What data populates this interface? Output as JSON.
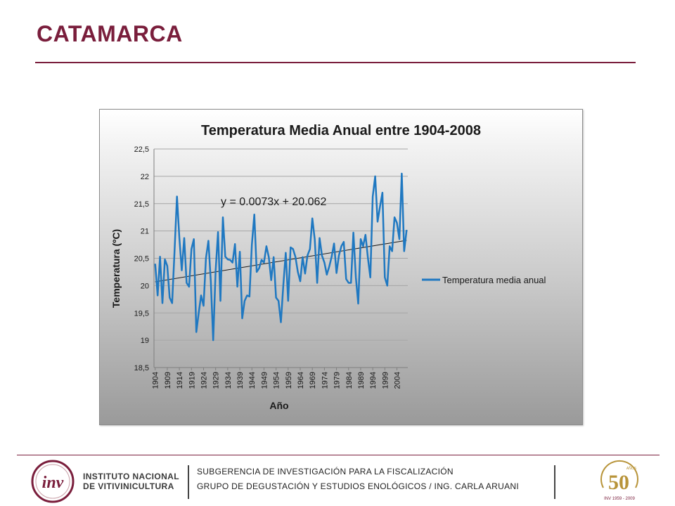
{
  "slide": {
    "title": "CATAMARCA"
  },
  "chart_data": {
    "type": "line",
    "title": "Temperatura Media Anual entre 1904-2008",
    "xlabel": "Año",
    "ylabel": "Temperatura (ºC)",
    "ylim": [
      18.5,
      22.5
    ],
    "yticks": [
      "18,5",
      "19",
      "19,5",
      "20",
      "20,5",
      "21",
      "21,5",
      "22",
      "22,5"
    ],
    "xtick_labels": [
      "1904",
      "1909",
      "1914",
      "1919",
      "1924",
      "1929",
      "1934",
      "1939",
      "1944",
      "1949",
      "1954",
      "1959",
      "1964",
      "1969",
      "1974",
      "1979",
      "1984",
      "1989",
      "1994",
      "1999",
      "2004"
    ],
    "x_start": 1904,
    "x_end": 2008,
    "legend": "Temperatura media anual",
    "legend_position": "right",
    "trendline_label": "y = 0.0073x + 20.062",
    "trendline": {
      "slope": 0.0073,
      "intercept": 20.062
    },
    "series": [
      {
        "name": "Temperatura media anual",
        "color": "#1f78c1",
        "values": [
          20.4,
          19.82,
          20.53,
          19.68,
          20.48,
          20.36,
          19.78,
          19.68,
          20.62,
          21.63,
          20.87,
          20.28,
          20.87,
          20.05,
          19.98,
          20.67,
          20.85,
          19.15,
          19.5,
          19.82,
          19.63,
          20.5,
          20.82,
          20.08,
          19.0,
          20.28,
          20.98,
          19.72,
          21.25,
          20.53,
          20.48,
          20.47,
          20.42,
          20.76,
          19.98,
          20.62,
          19.4,
          19.72,
          19.82,
          19.8,
          20.75,
          21.3,
          20.25,
          20.32,
          20.47,
          20.42,
          20.72,
          20.52,
          20.1,
          20.52,
          19.78,
          19.72,
          19.33,
          20.0,
          20.6,
          19.72,
          20.7,
          20.67,
          20.53,
          20.25,
          20.08,
          20.52,
          20.22,
          20.55,
          20.67,
          21.23,
          20.85,
          20.05,
          20.87,
          20.55,
          20.42,
          20.2,
          20.35,
          20.53,
          20.77,
          20.23,
          20.55,
          20.72,
          20.8,
          20.12,
          20.05,
          20.05,
          20.97,
          20.15,
          19.67,
          20.85,
          20.72,
          20.93,
          20.5,
          20.15,
          21.63,
          22.0,
          21.17,
          21.45,
          21.7,
          20.15,
          20.0,
          20.72,
          20.63,
          21.25,
          21.15,
          20.85,
          22.05,
          20.63,
          21.02
        ]
      }
    ]
  },
  "footer": {
    "logo_text_line1": "INSTITUTO NACIONAL",
    "logo_text_line2": "DE VITIVINICULTURA",
    "logo_mark": "inv",
    "line1": "SUBGERENCIA DE INVESTIGACIÓN PARA LA FISCALIZACIÓN",
    "line2": "GRUPO DE DEGUSTACIÓN Y ESTUDIOS ENOLÓGICOS / ING. CARLA ARUANI",
    "anniversary_number": "50",
    "anniversary_word": "AÑOS",
    "anniversary_years": "INV 1959 - 2009"
  },
  "colors": {
    "brand": "#7a1e3c",
    "series": "#1f78c1",
    "gold": "#b8943a"
  }
}
